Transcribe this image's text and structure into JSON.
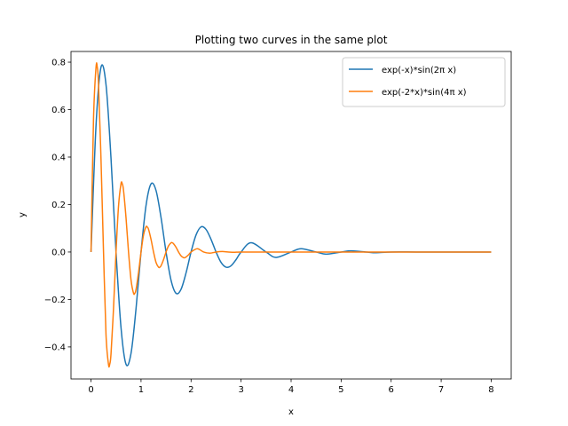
{
  "chart_data": {
    "type": "line",
    "title": "Plotting two curves in the same plot",
    "xlabel": "x",
    "ylabel": "y",
    "xlim": [
      -0.4,
      8.4
    ],
    "ylim": [
      -0.535,
      0.845
    ],
    "xticks": [
      0,
      1,
      2,
      3,
      4,
      5,
      6,
      7,
      8
    ],
    "xtick_labels": [
      "0",
      "1",
      "2",
      "3",
      "4",
      "5",
      "6",
      "7",
      "8"
    ],
    "yticks": [
      -0.4,
      -0.2,
      0.0,
      0.2,
      0.4,
      0.6,
      0.8
    ],
    "ytick_labels": [
      "−0.4",
      "−0.2",
      "0.0",
      "0.2",
      "0.4",
      "0.6",
      "0.8"
    ],
    "grid": false,
    "legend_position": "top-right",
    "series": [
      {
        "name": "exp(-x)*sin(2π x)",
        "color": "#1f77b4",
        "x": [
          0,
          0.1,
          0.2,
          0.3,
          0.4,
          0.5,
          0.6,
          0.7,
          0.8,
          0.9,
          1.0,
          1.1,
          1.2,
          1.3,
          1.4,
          1.5,
          1.6,
          1.7,
          1.8,
          1.9,
          2.0,
          2.1,
          2.2,
          2.3,
          2.4,
          2.5,
          2.6,
          2.7,
          2.8,
          2.9,
          3.0,
          3.2,
          3.5,
          3.7,
          4.0,
          4.2,
          4.5,
          4.7,
          5.0,
          5.2,
          5.5,
          5.7,
          6.0,
          6.5,
          7.0,
          7.5,
          8.0
        ],
        "y": [
          0.0,
          0.532,
          0.779,
          0.705,
          0.394,
          0.0,
          -0.319,
          -0.473,
          -0.427,
          -0.239,
          0.0,
          0.196,
          0.287,
          0.259,
          0.145,
          0.0,
          -0.119,
          -0.174,
          -0.157,
          -0.088,
          0.0,
          0.072,
          0.106,
          0.095,
          0.053,
          0.0,
          -0.044,
          -0.064,
          -0.058,
          -0.032,
          0.0,
          0.039,
          0.0,
          -0.023,
          0.0,
          0.014,
          0.0,
          -0.009,
          0.0,
          0.005,
          0.0,
          -0.003,
          0.0,
          0.0,
          0.0,
          0.0,
          0.0
        ]
      },
      {
        "name": "exp(-2*x)*sin(4π x)",
        "color": "#ff7f0e",
        "x": [
          0,
          0.05,
          0.1,
          0.125,
          0.15,
          0.2,
          0.25,
          0.3,
          0.35,
          0.375,
          0.4,
          0.45,
          0.5,
          0.55,
          0.6,
          0.625,
          0.65,
          0.7,
          0.75,
          0.8,
          0.85,
          0.875,
          0.9,
          0.95,
          1.0,
          1.05,
          1.1,
          1.125,
          1.15,
          1.2,
          1.25,
          1.3,
          1.35,
          1.375,
          1.4,
          1.45,
          1.5,
          1.55,
          1.6,
          1.625,
          1.65,
          1.7,
          1.75,
          1.8,
          1.85,
          1.875,
          1.9,
          1.95,
          2.0,
          2.125,
          2.25,
          2.375,
          2.5,
          2.625,
          2.75,
          2.875,
          3.0,
          3.5,
          4.0,
          5.0,
          6.0,
          7.0,
          8.0
        ],
        "y": [
          0.0,
          0.559,
          0.778,
          0.779,
          0.706,
          0.39,
          0.0,
          -0.349,
          -0.474,
          -0.472,
          -0.429,
          -0.237,
          0.0,
          0.193,
          0.288,
          0.287,
          0.26,
          0.144,
          0.0,
          -0.118,
          -0.174,
          -0.174,
          -0.158,
          -0.087,
          0.0,
          0.072,
          0.106,
          0.105,
          0.096,
          0.053,
          0.0,
          -0.044,
          -0.064,
          -0.064,
          -0.058,
          -0.032,
          0.0,
          0.026,
          0.039,
          0.039,
          0.035,
          0.02,
          0.0,
          -0.016,
          -0.024,
          -0.024,
          -0.021,
          -0.012,
          0.0,
          0.014,
          0.0,
          -0.005,
          0.0,
          0.002,
          0.0,
          -0.001,
          0.0,
          0.0,
          0.0,
          0.0,
          0.0,
          0.0,
          0.0
        ]
      }
    ]
  }
}
